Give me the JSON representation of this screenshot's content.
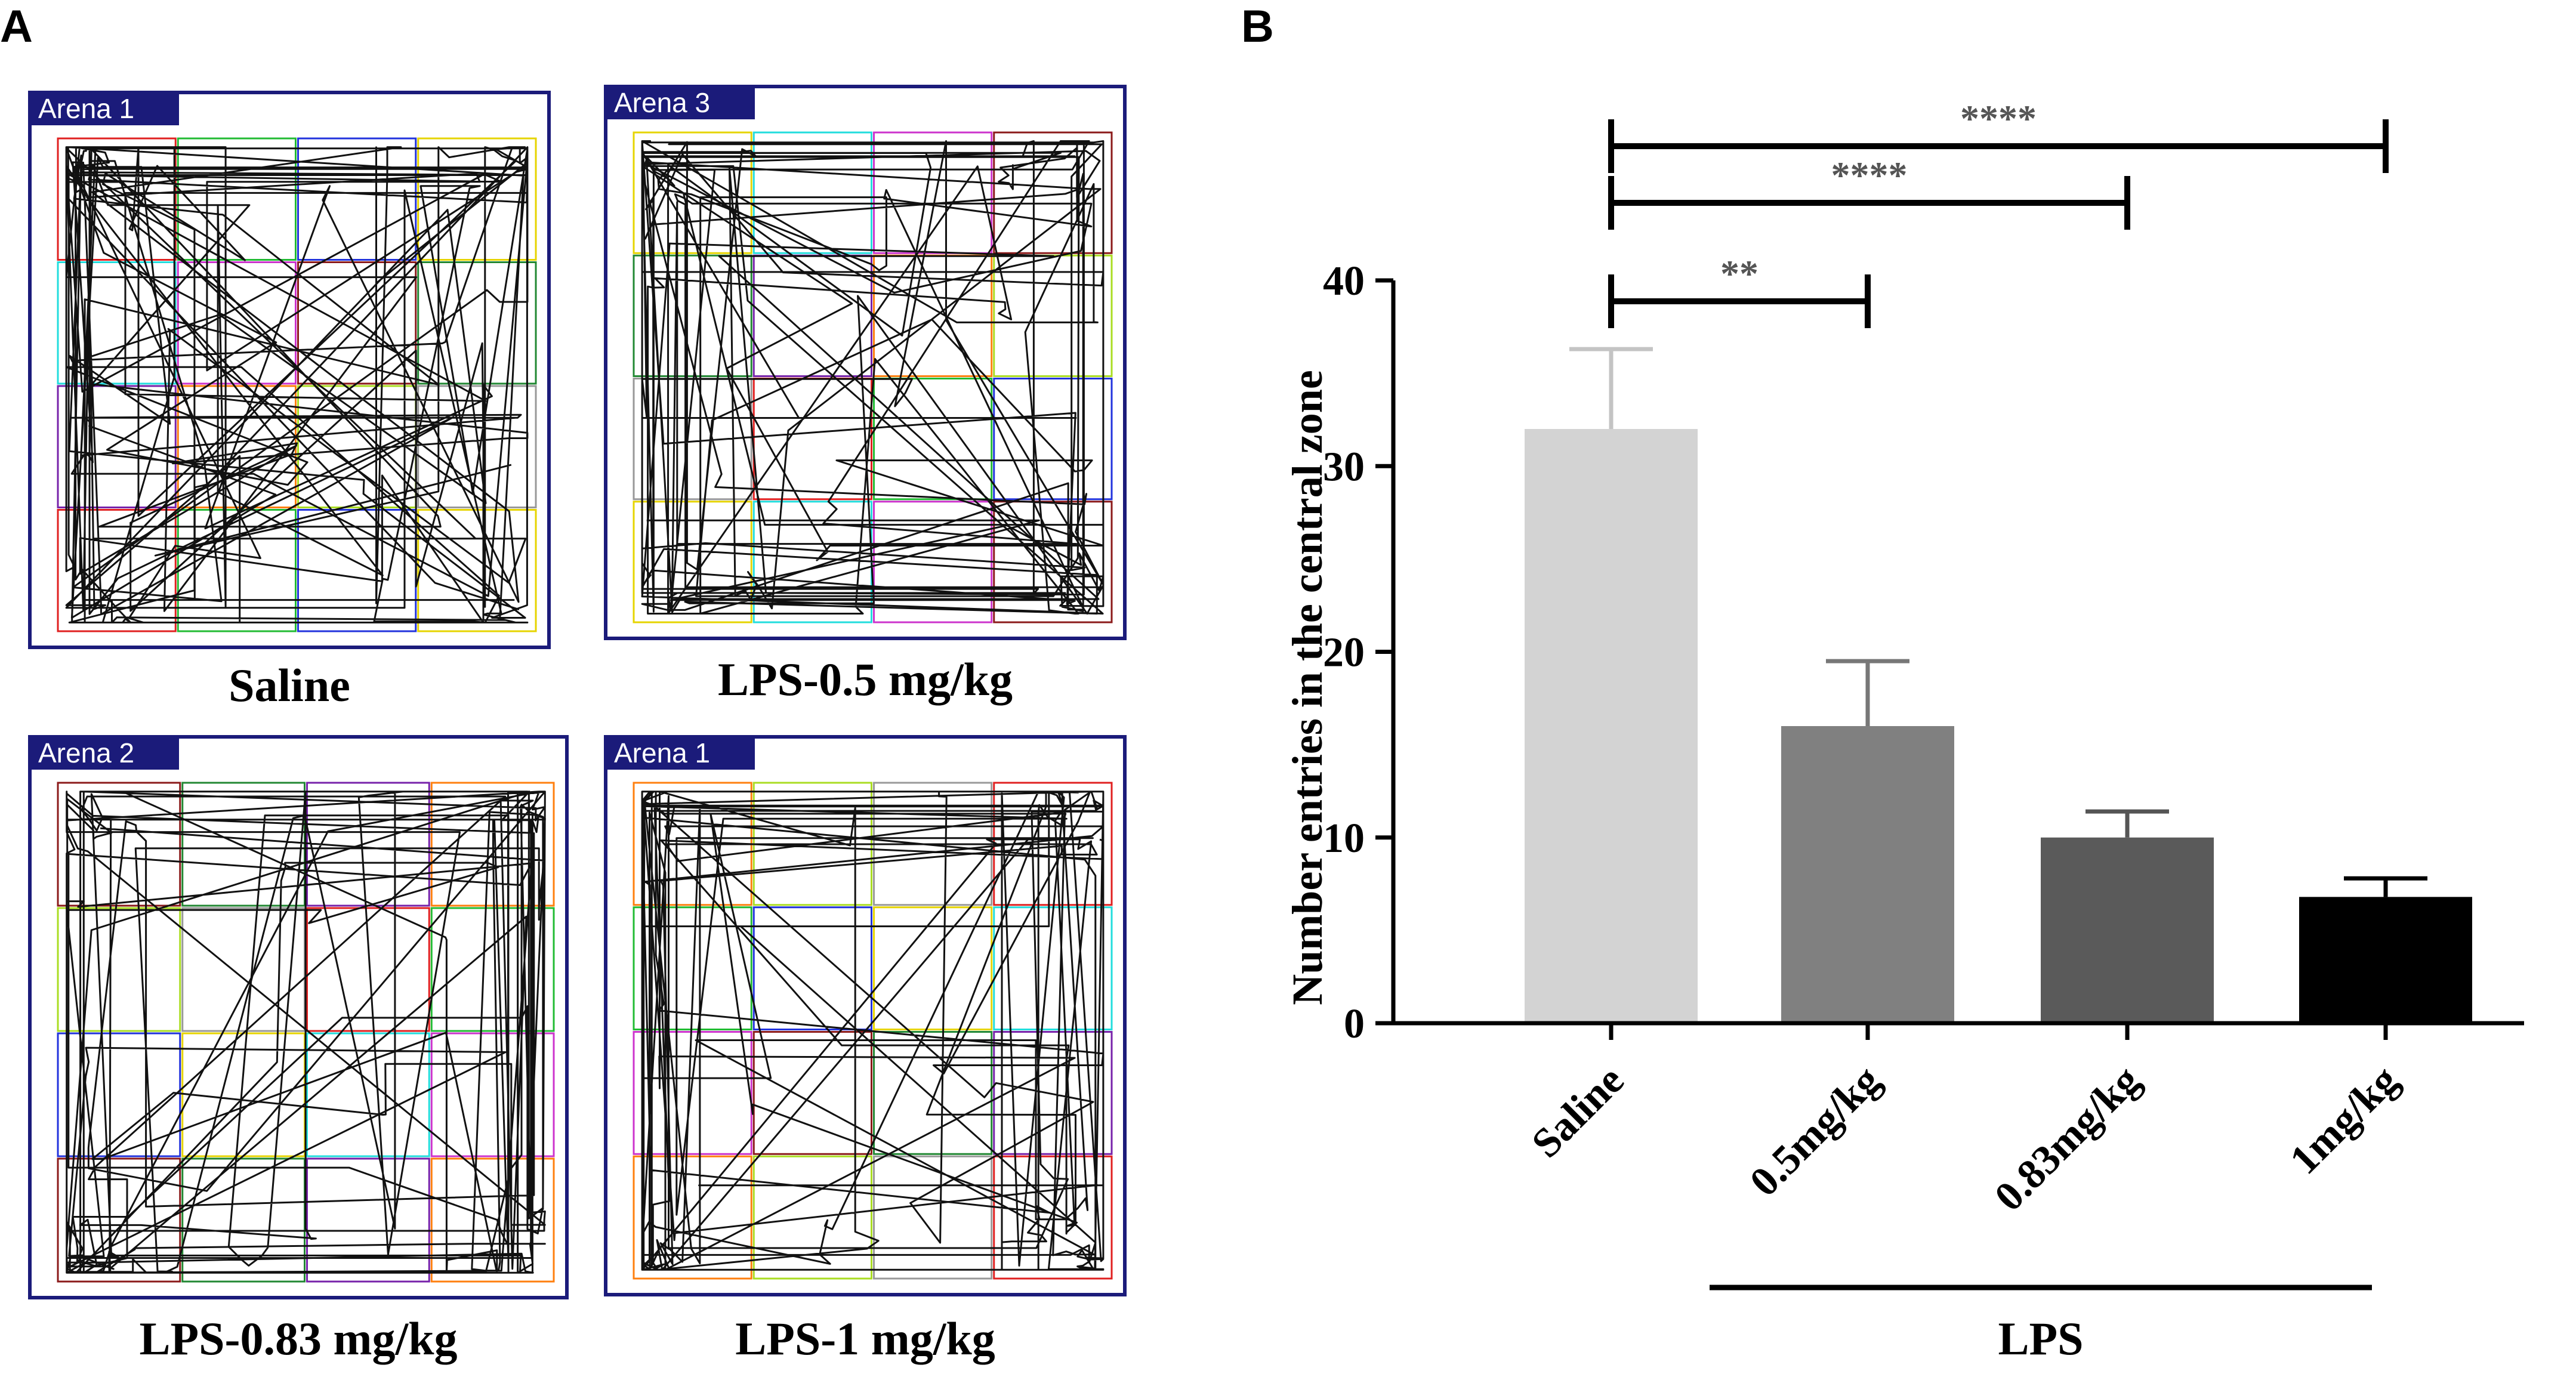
{
  "panel_labels": {
    "a": "A",
    "b": "B"
  },
  "arenas": [
    {
      "title": "Arena 1",
      "caption": "Saline"
    },
    {
      "title": "Arena 3",
      "caption": "LPS-0.5 mg/kg"
    },
    {
      "title": "Arena 2",
      "caption": "LPS-0.83 mg/kg"
    },
    {
      "title": "Arena 1",
      "caption": "LPS-1 mg/kg"
    }
  ],
  "colors": {
    "frame": "#1b1b7a",
    "track": "#111111",
    "grid": [
      "#e02020",
      "#22bb33",
      "#2233dd",
      "#e6d400",
      "#22dddd",
      "#cc33cc",
      "#8b1a1a",
      "#228833",
      "#7722aa",
      "#ff7f0e",
      "#aadd22",
      "#999999"
    ],
    "bars": [
      "#d3d3d3",
      "#808080",
      "#5a5a5a",
      "#000000"
    ],
    "errors": [
      "#c4c4c4",
      "#777777",
      "#555555",
      "#000000"
    ]
  },
  "chart_data": {
    "type": "bar",
    "ylabel": "Number entries in the central zone",
    "categories": [
      "Saline",
      "0.5mg/kg",
      "0.83mg/kg",
      "1mg/kg"
    ],
    "values": [
      32,
      16,
      10,
      6.8
    ],
    "errors": [
      4.3,
      3.5,
      1.4,
      1.0
    ],
    "ylim": [
      0,
      40
    ],
    "yticks": [
      0,
      10,
      20,
      30,
      40
    ],
    "group_label": "LPS",
    "significance": [
      {
        "from": 0,
        "to": 1,
        "label": "**"
      },
      {
        "from": 0,
        "to": 2,
        "label": "****"
      },
      {
        "from": 0,
        "to": 3,
        "label": "****"
      }
    ]
  }
}
